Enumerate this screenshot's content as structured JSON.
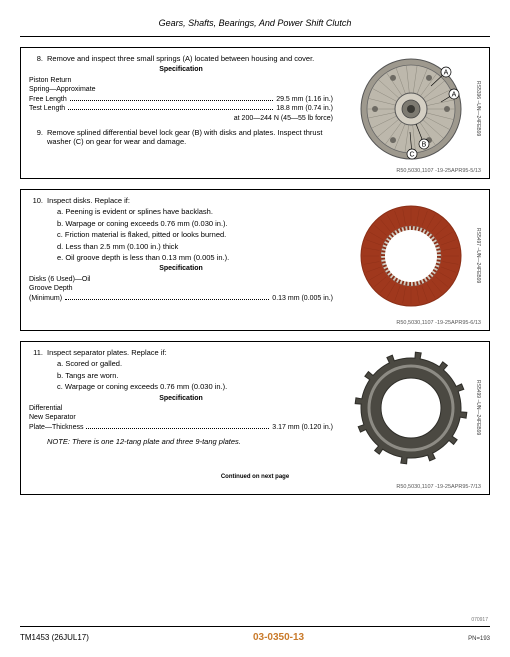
{
  "header": {
    "title": "Gears, Shafts, Bearings, And Power Shift Clutch"
  },
  "panel1": {
    "step8": {
      "num": "8.",
      "text": "Remove and inspect three small springs (A) located between housing and cover."
    },
    "spec_heading": "Specification",
    "spec_label1": "Piston Return",
    "spec_label2": "Spring—Approximate",
    "spec_rows": [
      {
        "label": "Free Length",
        "value": "29.5 mm (1.16 in.)"
      },
      {
        "label": "Test Length",
        "value": "18.8 mm (0.74 in.)"
      },
      {
        "label": "",
        "value": "at 200—244 N (45—55 lb force)"
      }
    ],
    "step9": {
      "num": "9.",
      "text": "Remove splined differential bevel lock gear (B) with disks and plates. Inspect thrust washer (C) on gear for wear and damage."
    },
    "image": {
      "callouts": [
        "A",
        "B",
        "C"
      ],
      "housing_fill": "#bdb8ac",
      "rim_fill": "#9e998e",
      "center_fill": "#d4cfc3",
      "bolt_fill": "#6d6a63"
    },
    "side_ref": "RS5396 –UN—24FEB99",
    "source": "R50,5030,1107 -19-25APR95-5/13"
  },
  "panel2": {
    "step10": {
      "num": "10.",
      "text": "Inspect disks. Replace if:"
    },
    "subs": [
      "a. Peening is evident or splines have backlash.",
      "b. Warpage or coning exceeds 0.76 mm (0.030 in.).",
      "c. Friction material is flaked, pitted or looks burned.",
      "d. Less than 2.5 mm (0.100 in.) thick",
      "e. Oil groove depth is less than 0.13 mm (0.005 in.)."
    ],
    "spec_heading": "Specification",
    "spec_label1": "Disks (6 Used)—Oil",
    "spec_label2": "Groove Depth",
    "spec_rows": [
      {
        "label": "(Minimum)",
        "value": "0.13 mm (0.005 in.)"
      }
    ],
    "image": {
      "disk_fill": "#a0381d",
      "disk_inner": "#8b2f17",
      "tooth_fill": "#d2cdc2"
    },
    "side_ref": "RS5497 –UN—24FEB99",
    "source": "R50,5030,1107 -19-25APR95-6/13"
  },
  "panel3": {
    "step11": {
      "num": "11.",
      "text": "Inspect separator plates. Replace if:"
    },
    "subs": [
      "a. Scored or galled.",
      "b. Tangs are worn.",
      "c. Warpage or coning exceeds 0.76 mm (0.030 in.)."
    ],
    "spec_heading": "Specification",
    "spec_label1": "Differential",
    "spec_label2": "New Separator",
    "spec_rows": [
      {
        "label": "Plate—Thickness",
        "value": "3.17 mm (0.120 in.)"
      }
    ],
    "note": "NOTE: There is one 12-tang plate and three 9-tang plates.",
    "continued": "Continued on next page",
    "image": {
      "plate_fill": "#4b4942",
      "plate_edge": "#2e2d28",
      "highlight": "#d0cdc6",
      "tang_count": 12
    },
    "side_ref": "RS5499 –UN—24FEB99",
    "source": "R50,5030,1107 -19-25APR95-7/13"
  },
  "footer": {
    "left": "TM1453 (26JUL17)",
    "center": "03-0350-13",
    "fine": "070917",
    "right": "PN=193"
  }
}
